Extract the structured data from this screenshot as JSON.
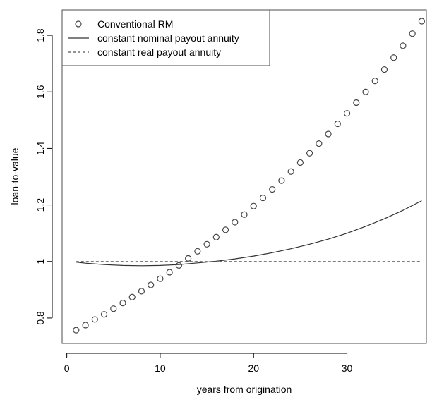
{
  "chart_data": {
    "type": "scatter",
    "xlabel": "years from origination",
    "ylabel": "loan-to-value",
    "xlim": [
      -0.5,
      38.5
    ],
    "ylim": [
      0.71,
      1.89
    ],
    "x_ticks": [
      0,
      10,
      20,
      30
    ],
    "y_ticks": [
      0.8,
      1.0,
      1.2,
      1.4,
      1.6,
      1.8
    ],
    "grid": false,
    "legend_position": "top-left",
    "series": [
      {
        "name": "Conventional RM",
        "style": "points",
        "marker": "open-circle",
        "color": "#444444",
        "x": [
          1,
          2,
          3,
          4,
          5,
          6,
          7,
          8,
          9,
          10,
          11,
          12,
          13,
          14,
          15,
          16,
          17,
          18,
          19,
          20,
          21,
          22,
          23,
          24,
          25,
          26,
          27,
          28,
          29,
          30,
          31,
          32,
          33,
          34,
          35,
          36,
          37,
          38
        ],
        "y": [
          0.757,
          0.775,
          0.795,
          0.813,
          0.833,
          0.853,
          0.874,
          0.895,
          0.917,
          0.939,
          0.962,
          0.986,
          1.011,
          1.036,
          1.061,
          1.086,
          1.112,
          1.139,
          1.166,
          1.196,
          1.225,
          1.255,
          1.286,
          1.318,
          1.35,
          1.383,
          1.417,
          1.451,
          1.487,
          1.524,
          1.562,
          1.6,
          1.639,
          1.679,
          1.721,
          1.763,
          1.806,
          1.85
        ]
      },
      {
        "name": "constant nominal payout annuity",
        "style": "solid",
        "color": "#333333",
        "x": [
          1,
          2,
          4,
          6,
          8,
          10,
          12,
          14,
          16,
          18,
          20,
          22,
          24,
          26,
          28,
          30,
          32,
          34,
          36,
          38
        ],
        "y": [
          0.998,
          0.994,
          0.989,
          0.986,
          0.985,
          0.986,
          0.989,
          0.995,
          1.001,
          1.009,
          1.019,
          1.031,
          1.045,
          1.061,
          1.079,
          1.1,
          1.124,
          1.151,
          1.181,
          1.215
        ]
      },
      {
        "name": "constant real payout annuity",
        "style": "dashed",
        "color": "#555555",
        "x": [
          1,
          38
        ],
        "y": [
          1.0,
          1.0
        ]
      }
    ]
  }
}
